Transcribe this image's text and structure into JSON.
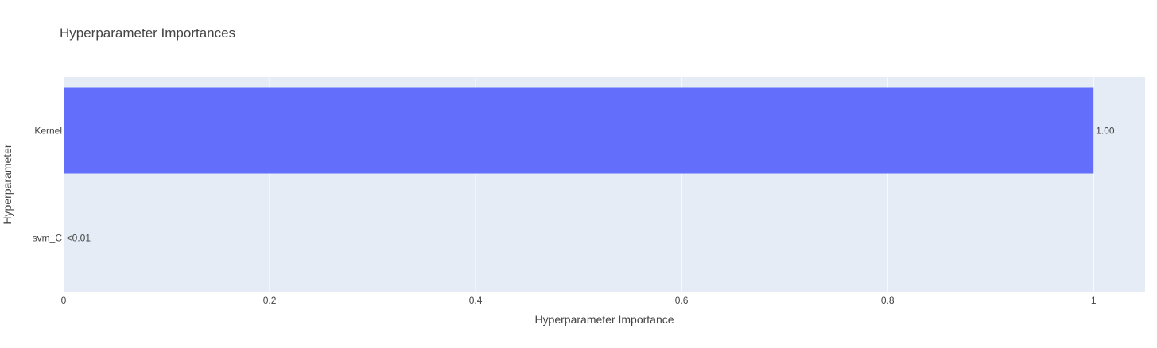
{
  "chart_data": {
    "type": "bar",
    "orientation": "horizontal",
    "title": "Hyperparameter Importances",
    "xlabel": "Hyperparameter Importance",
    "ylabel": "Hyperparameter",
    "xlim": [
      0,
      1.05
    ],
    "xticks": [
      0,
      0.2,
      0.4,
      0.6,
      0.8,
      1
    ],
    "xtick_labels": [
      "0",
      "0.2",
      "0.4",
      "0.6",
      "0.8",
      "1"
    ],
    "categories": [
      "svm_C",
      "Kernel"
    ],
    "values": [
      0.0005,
      1.0
    ],
    "data_labels": [
      "<0.01",
      "1.00"
    ],
    "grid": true,
    "bar_color": "#636efa",
    "plot_background": "#e5ecf6",
    "gridline_color": "#ffffff"
  }
}
